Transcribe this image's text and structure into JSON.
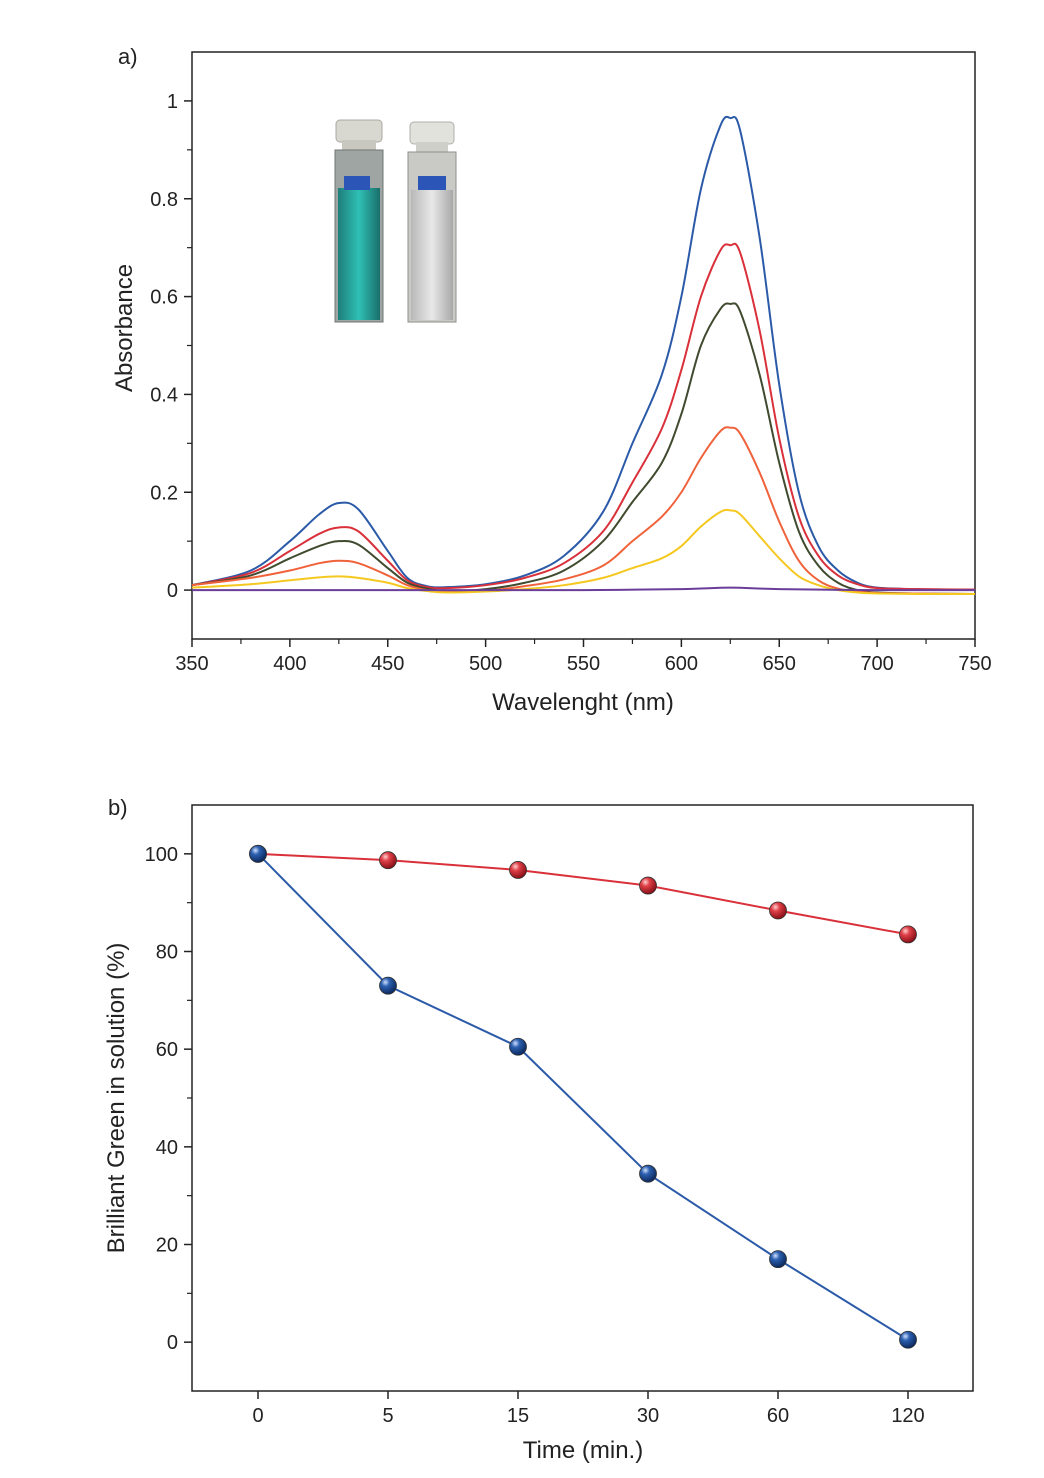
{
  "chart_data": [
    {
      "type": "line",
      "panel_label": "a)",
      "xlabel": "Wavelenght (nm)",
      "ylabel": "Absorbance",
      "xlim": [
        350,
        750
      ],
      "ylim": [
        -0.1,
        1.1
      ],
      "xticks": [
        350,
        400,
        450,
        500,
        550,
        600,
        650,
        700,
        750
      ],
      "yticks": [
        0,
        0.2,
        0.4,
        0.6,
        0.8,
        1
      ],
      "grid": false,
      "legend": "none",
      "series": [
        {
          "color": "#2b5aa8",
          "x": [
            350,
            380,
            400,
            415,
            425,
            435,
            450,
            460,
            470,
            480,
            500,
            520,
            540,
            560,
            575,
            590,
            600,
            610,
            620,
            625,
            630,
            640,
            650,
            660,
            670,
            680,
            690,
            700,
            720,
            750
          ],
          "y": [
            0.01,
            0.04,
            0.1,
            0.155,
            0.178,
            0.165,
            0.08,
            0.025,
            0.008,
            0.006,
            0.012,
            0.03,
            0.07,
            0.16,
            0.3,
            0.44,
            0.6,
            0.82,
            0.95,
            0.965,
            0.94,
            0.72,
            0.42,
            0.2,
            0.09,
            0.04,
            0.015,
            0.005,
            0.002,
            0.001
          ]
        },
        {
          "color": "#d9303a",
          "x": [
            350,
            380,
            400,
            415,
            425,
            435,
            450,
            460,
            470,
            480,
            500,
            520,
            540,
            560,
            575,
            590,
            600,
            610,
            620,
            625,
            630,
            640,
            650,
            660,
            670,
            680,
            690,
            700,
            720,
            750
          ],
          "y": [
            0.01,
            0.035,
            0.08,
            0.115,
            0.128,
            0.12,
            0.06,
            0.02,
            0.006,
            0.004,
            0.01,
            0.025,
            0.055,
            0.12,
            0.22,
            0.33,
            0.45,
            0.6,
            0.695,
            0.705,
            0.69,
            0.53,
            0.31,
            0.15,
            0.07,
            0.03,
            0.012,
            0.004,
            0.002,
            0.001
          ]
        },
        {
          "color": "#3f4a2e",
          "x": [
            350,
            380,
            400,
            415,
            425,
            435,
            450,
            460,
            470,
            480,
            500,
            520,
            540,
            560,
            575,
            590,
            600,
            610,
            620,
            625,
            630,
            640,
            650,
            660,
            670,
            680,
            690,
            700,
            720,
            750
          ],
          "y": [
            0.01,
            0.03,
            0.065,
            0.09,
            0.1,
            0.093,
            0.045,
            0.015,
            0.003,
            -0.002,
            0.002,
            0.015,
            0.04,
            0.1,
            0.18,
            0.26,
            0.36,
            0.5,
            0.575,
            0.585,
            0.57,
            0.44,
            0.26,
            0.12,
            0.05,
            0.015,
            0.0,
            -0.005,
            -0.007,
            -0.008
          ]
        },
        {
          "color": "#f0623a",
          "x": [
            350,
            380,
            400,
            415,
            425,
            435,
            450,
            460,
            470,
            480,
            500,
            520,
            540,
            560,
            575,
            590,
            600,
            610,
            620,
            625,
            630,
            640,
            650,
            660,
            670,
            680,
            690,
            700,
            720,
            750
          ],
          "y": [
            0.01,
            0.025,
            0.04,
            0.055,
            0.06,
            0.055,
            0.03,
            0.01,
            0.0,
            -0.004,
            -0.002,
            0.008,
            0.022,
            0.05,
            0.1,
            0.15,
            0.2,
            0.27,
            0.325,
            0.332,
            0.32,
            0.24,
            0.14,
            0.06,
            0.02,
            0.003,
            -0.003,
            -0.006,
            -0.007,
            -0.008
          ]
        },
        {
          "color": "#f5c820",
          "x": [
            350,
            380,
            400,
            415,
            425,
            435,
            450,
            460,
            470,
            480,
            500,
            520,
            540,
            560,
            575,
            590,
            600,
            610,
            620,
            625,
            630,
            640,
            650,
            660,
            670,
            680,
            690,
            700,
            720,
            750
          ],
          "y": [
            0.005,
            0.012,
            0.02,
            0.026,
            0.028,
            0.025,
            0.015,
            0.004,
            -0.002,
            -0.005,
            -0.003,
            0.002,
            0.01,
            0.025,
            0.045,
            0.065,
            0.09,
            0.13,
            0.16,
            0.163,
            0.155,
            0.11,
            0.065,
            0.028,
            0.01,
            0.0,
            -0.005,
            -0.007,
            -0.008,
            -0.008
          ]
        },
        {
          "color": "#6a3d9a",
          "x": [
            350,
            400,
            450,
            500,
            550,
            600,
            625,
            650,
            700,
            750
          ],
          "y": [
            0.0,
            0.0,
            0.0,
            0.0,
            0.0,
            0.002,
            0.005,
            0.002,
            0.0,
            0.0
          ]
        }
      ]
    },
    {
      "type": "line",
      "panel_label": "b)",
      "xlabel": "Time (min.)",
      "ylabel": "Brilliant Green in solution (%)",
      "categories": [
        "0",
        "5",
        "15",
        "30",
        "60",
        "120"
      ],
      "ylim": [
        -10,
        110
      ],
      "yticks": [
        0,
        20,
        40,
        60,
        80,
        100
      ],
      "grid": false,
      "legend": "none",
      "series": [
        {
          "color": "#d9303a",
          "values": [
            100,
            98.7,
            96.7,
            93.5,
            88.4,
            83.5
          ]
        },
        {
          "color": "#2b5aa8",
          "values": [
            100,
            73.0,
            60.5,
            34.5,
            17.0,
            0.5
          ]
        }
      ]
    }
  ]
}
